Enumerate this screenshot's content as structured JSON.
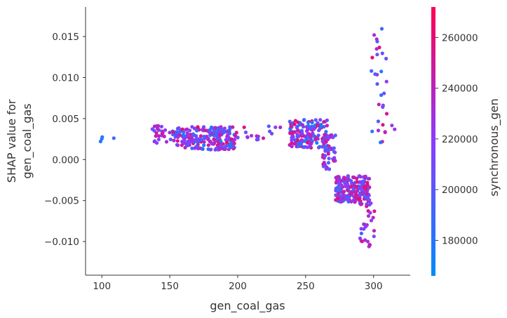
{
  "colors": {
    "background": "#ffffff",
    "axis": "#333333",
    "colormap_low": "#008bfb",
    "colormap_mid": "#8c3bff",
    "colormap_high": "#ff0052"
  },
  "chart_data": {
    "type": "scatter",
    "title": "",
    "xlabel": "gen_coal_gas",
    "ylabel_line1": "SHAP value for",
    "ylabel_line2": "gen_coal_gas",
    "colorbar_label": "synchronous_gen",
    "xlim": [
      88,
      327
    ],
    "ylim": [
      -0.0141,
      0.0186
    ],
    "colorbar_range": [
      166000,
      272000
    ],
    "x_ticks": [
      100,
      150,
      200,
      250,
      300
    ],
    "x_tick_labels": [
      "100",
      "150",
      "200",
      "250",
      "300"
    ],
    "y_ticks": [
      -0.01,
      -0.005,
      0.0,
      0.005,
      0.01,
      0.015
    ],
    "y_tick_labels": [
      "−0.010",
      "−0.005",
      "0.000",
      "0.005",
      "0.010",
      "0.015"
    ],
    "colorbar_ticks": [
      180000,
      200000,
      220000,
      240000,
      260000
    ],
    "colorbar_tick_labels": [
      "180000",
      "200000",
      "220000",
      "240000",
      "260000"
    ],
    "grid": false,
    "clusters": [
      {
        "x": [
          99,
          101
        ],
        "y": [
          0.0022,
          0.0028
        ],
        "c": [
          175000,
          185000
        ],
        "n": 3
      },
      {
        "x": [
          108,
          109
        ],
        "y": [
          0.0026,
          0.0029
        ],
        "c": [
          185000,
          195000
        ],
        "n": 1
      },
      {
        "x": [
          137,
          148
        ],
        "y": [
          0.002,
          0.0042
        ],
        "c": [
          190000,
          250000
        ],
        "n": 25
      },
      {
        "x": [
          148,
          155
        ],
        "y": [
          0.0022,
          0.0036
        ],
        "c": [
          180000,
          255000
        ],
        "n": 10
      },
      {
        "x": [
          155,
          198
        ],
        "y": [
          0.0012,
          0.004
        ],
        "c": [
          172000,
          262000
        ],
        "n": 230
      },
      {
        "x": [
          198,
          232
        ],
        "y": [
          0.0024,
          0.0041
        ],
        "c": [
          195000,
          265000
        ],
        "n": 18
      },
      {
        "x": [
          238,
          266
        ],
        "y": [
          0.0014,
          0.0049
        ],
        "c": [
          172000,
          265000
        ],
        "n": 160
      },
      {
        "x": [
          262,
          272
        ],
        "y": [
          -0.0012,
          0.003
        ],
        "c": [
          190000,
          255000
        ],
        "n": 45
      },
      {
        "x": [
          272,
          297
        ],
        "y": [
          -0.0052,
          -0.002
        ],
        "c": [
          185000,
          265000
        ],
        "n": 220
      },
      {
        "x": [
          290,
          301
        ],
        "y": [
          -0.0108,
          -0.005
        ],
        "c": [
          180000,
          255000
        ],
        "n": 30
      },
      {
        "x": [
          298,
          310
        ],
        "y": [
          0.002,
          0.016
        ],
        "c": [
          178000,
          268000
        ],
        "n": 30
      },
      {
        "x": [
          312,
          316
        ],
        "y": [
          0.0034,
          0.0043
        ],
        "c": [
          215000,
          262000
        ],
        "n": 2
      }
    ]
  }
}
